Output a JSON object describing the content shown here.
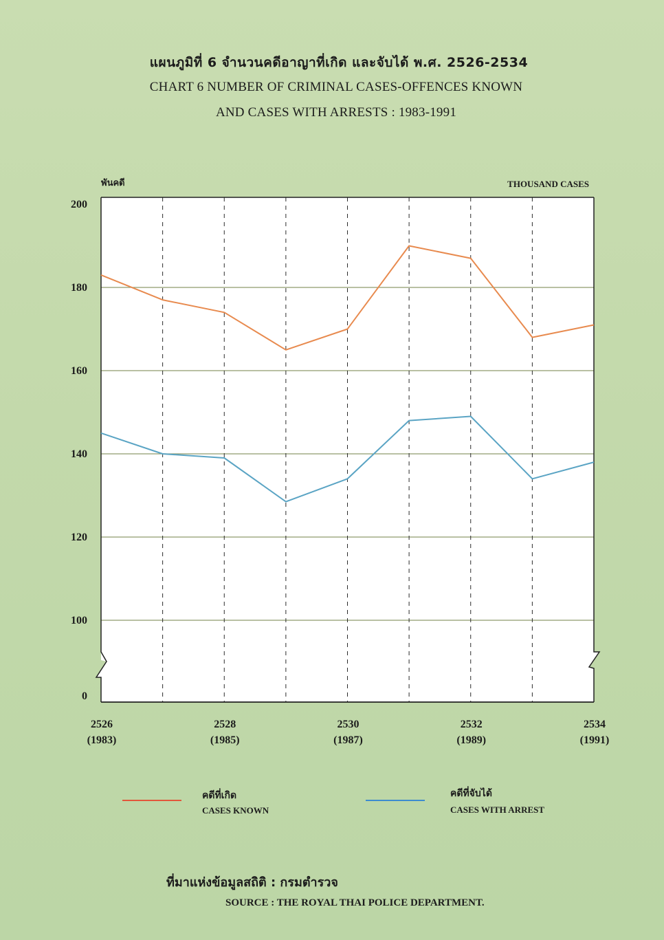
{
  "title_thai": "แผนภูมิที่  6  จำนวนคดีอาญาที่เกิด และจับได้ พ.ศ. 2526-2534",
  "title_en_line1": "CHART   6   NUMBER OF CRIMINAL CASES-OFFENCES KNOWN",
  "title_en_line2": "AND CASES WITH ARRESTS : 1983-1991",
  "unit_thai": "พันคดี",
  "unit_en": "THOUSAND CASES",
  "colors": {
    "cases_known": "#e88a4e",
    "cases_arrest": "#5aa4c4",
    "legend_known": "#e2563a",
    "legend_arrest": "#3d8ccf",
    "grid": "#8f9b6c",
    "plot_bg": "#ffffff"
  },
  "legend": {
    "known_th": "คดีที่เกิด",
    "known_en": "CASES KNOWN",
    "arrest_th": "คดีที่จับได้",
    "arrest_en": "CASES WITH ARREST"
  },
  "source_thai": "ที่มาแห่งข้อมูลสถิติ  :  กรมตำรวจ",
  "source_en": "SOURCE  :  THE ROYAL THAI POLICE DEPARTMENT.",
  "chart_data": {
    "type": "line",
    "title": "NUMBER OF CRIMINAL CASES-OFFENCES KNOWN AND CASES WITH ARRESTS : 1983-1991",
    "ylabel": "THOUSAND CASES",
    "x": [
      2526,
      2527,
      2528,
      2529,
      2530,
      2531,
      2532,
      2533,
      2534
    ],
    "x_tick_labels": [
      {
        "top": "2526",
        "bottom": "(1983)"
      },
      {
        "top": "2528",
        "bottom": "(1985)"
      },
      {
        "top": "2530",
        "bottom": "(1987)"
      },
      {
        "top": "2532",
        "bottom": "(1989)"
      },
      {
        "top": "2534",
        "bottom": "(1991)"
      }
    ],
    "x_tick_values": [
      2526,
      2528,
      2530,
      2532,
      2534
    ],
    "y_ticks": [
      0,
      100,
      120,
      140,
      160,
      180,
      200
    ],
    "ylim": [
      100,
      200
    ],
    "y_axis_break": true,
    "grid": "horizontal solid, vertical dashed",
    "series": [
      {
        "name": "CASES KNOWN",
        "values": [
          183,
          177,
          174,
          165,
          170,
          190,
          187,
          168,
          171
        ]
      },
      {
        "name": "CASES WITH ARREST",
        "values": [
          145,
          140,
          139,
          128.5,
          134,
          148,
          149,
          134,
          138
        ]
      }
    ]
  }
}
